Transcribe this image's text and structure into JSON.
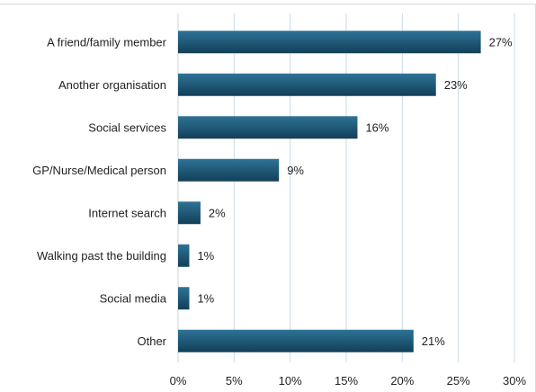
{
  "chart_data": {
    "type": "bar",
    "orientation": "horizontal",
    "categories": [
      "A friend/family member",
      "Another organisation",
      "Social services",
      "GP/Nurse/Medical person",
      "Internet search",
      "Walking past the building",
      "Social media",
      "Other"
    ],
    "values": [
      27,
      23,
      16,
      9,
      2,
      1,
      1,
      21
    ],
    "value_labels": [
      "27%",
      "23%",
      "16%",
      "9%",
      "2%",
      "1%",
      "1%",
      "21%"
    ],
    "x_ticks": [
      "0%",
      "5%",
      "10%",
      "15%",
      "20%",
      "25%",
      "30%"
    ],
    "xlim": [
      0,
      30
    ],
    "title": "",
    "xlabel": "",
    "ylabel": "",
    "grid": "vertical",
    "legend": "none",
    "colors": {
      "bar_top": "#2e7396",
      "bar_bottom": "#123f58",
      "grid": "#c9dbe6"
    }
  }
}
